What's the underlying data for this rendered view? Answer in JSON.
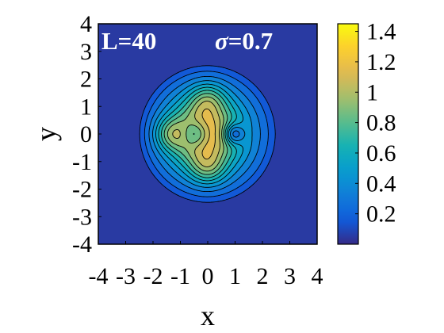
{
  "chart_data": {
    "type": "heatmap",
    "subtype": "filled-contour",
    "colormap": "parula",
    "x": {
      "label": "x",
      "lim": [
        -4,
        4
      ],
      "ticks": [
        "-4",
        "-3",
        "-2",
        "-1",
        "0",
        "1",
        "2",
        "3",
        "4"
      ]
    },
    "y": {
      "label": "y",
      "lim": [
        -4,
        4
      ],
      "ticks": [
        "4",
        "3",
        "2",
        "1",
        "0",
        "-1",
        "-2",
        "-3",
        "-4"
      ]
    },
    "colorbar": {
      "lim": [
        0,
        1.45
      ],
      "ticks": [
        "1.4",
        "1.2",
        "1",
        "0.8",
        "0.6",
        "0.4",
        "0.2"
      ]
    },
    "annotations": {
      "left": "L=40",
      "right_symbol": "σ",
      "right_value": "=0.7"
    },
    "field": {
      "disk_radius": 2.6,
      "peak_value": 1.42,
      "features": [
        {
          "name": "top lobe",
          "x": 0.0,
          "y": 1.3,
          "value": 1.4
        },
        {
          "name": "bottom lobe",
          "x": 0.0,
          "y": -1.3,
          "value": 1.4
        },
        {
          "name": "left lobe",
          "x": -1.45,
          "y": 0.0,
          "value": 1.4
        },
        {
          "name": "center hole",
          "x": -0.45,
          "y": 0.0,
          "value": 1.05
        },
        {
          "name": "right hole",
          "x": 0.95,
          "y": 0.0,
          "value": 0.7
        }
      ]
    },
    "grid": false,
    "legend": "none"
  }
}
